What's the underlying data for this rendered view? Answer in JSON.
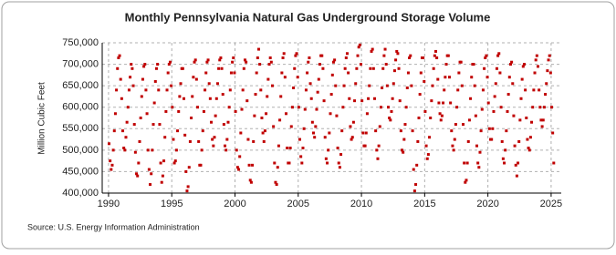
{
  "chart_data": {
    "type": "scatter",
    "title": "Monthly Pennsylvania Natural Gas Underground Storage Volume",
    "y_label": "Million Cubic Feet",
    "source": "Source: U.S. Energy Information Administration",
    "color": "#c00000",
    "grid": true,
    "xlim": [
      1989.5,
      2025.8
    ],
    "ylim": [
      400000,
      750000
    ],
    "xticks": [
      1990,
      1995,
      2000,
      2005,
      2010,
      2015,
      2020,
      2025
    ],
    "yticks": [
      {
        "value": 400000,
        "label": "400,000"
      },
      {
        "value": 450000,
        "label": "450,000"
      },
      {
        "value": 500000,
        "label": "500,000"
      },
      {
        "value": 550000,
        "label": "550,000"
      },
      {
        "value": 600000,
        "label": "600,000"
      },
      {
        "value": 650000,
        "label": "650,000"
      },
      {
        "value": 700000,
        "label": "700,000"
      },
      {
        "value": 750000,
        "label": "750,000"
      }
    ],
    "x": [
      1990.042,
      1990.125,
      1990.208,
      1990.292,
      1990.375,
      1990.458,
      1990.542,
      1990.625,
      1990.708,
      1990.792,
      1990.875,
      1990.958,
      1991.042,
      1991.125,
      1991.208,
      1991.292,
      1991.375,
      1991.458,
      1991.542,
      1991.625,
      1991.708,
      1991.792,
      1991.875,
      1991.958,
      1992.042,
      1992.125,
      1992.208,
      1992.292,
      1992.375,
      1992.458,
      1992.542,
      1992.625,
      1992.708,
      1992.792,
      1992.875,
      1992.958,
      1993.042,
      1993.125,
      1993.208,
      1993.292,
      1993.375,
      1993.458,
      1993.542,
      1993.625,
      1993.708,
      1993.792,
      1993.875,
      1993.958,
      1994.042,
      1994.125,
      1994.208,
      1994.292,
      1994.375,
      1994.458,
      1994.542,
      1994.625,
      1994.708,
      1994.792,
      1994.875,
      1994.958,
      1995.042,
      1995.125,
      1995.208,
      1995.292,
      1995.375,
      1995.458,
      1995.542,
      1995.625,
      1995.708,
      1995.792,
      1995.875,
      1995.958,
      1996.042,
      1996.125,
      1996.208,
      1996.292,
      1996.375,
      1996.458,
      1996.542,
      1996.625,
      1996.708,
      1996.792,
      1996.875,
      1996.958,
      1997.042,
      1997.125,
      1997.208,
      1997.292,
      1997.375,
      1997.458,
      1997.542,
      1997.625,
      1997.708,
      1997.792,
      1997.875,
      1997.958,
      1998.042,
      1998.125,
      1998.208,
      1998.292,
      1998.375,
      1998.458,
      1998.542,
      1998.625,
      1998.708,
      1998.792,
      1998.875,
      1998.958,
      1999.042,
      1999.125,
      1999.208,
      1999.292,
      1999.375,
      1999.458,
      1999.542,
      1999.625,
      1999.708,
      1999.792,
      1999.875,
      1999.958,
      2000.042,
      2000.125,
      2000.208,
      2000.292,
      2000.375,
      2000.458,
      2000.542,
      2000.625,
      2000.708,
      2000.792,
      2000.875,
      2000.958,
      2001.042,
      2001.125,
      2001.208,
      2001.292,
      2001.375,
      2001.458,
      2001.542,
      2001.625,
      2001.708,
      2001.792,
      2001.875,
      2001.958,
      2002.042,
      2002.125,
      2002.208,
      2002.292,
      2002.375,
      2002.458,
      2002.542,
      2002.625,
      2002.708,
      2002.792,
      2002.875,
      2002.958,
      2003.042,
      2003.125,
      2003.208,
      2003.292,
      2003.375,
      2003.458,
      2003.542,
      2003.625,
      2003.708,
      2003.792,
      2003.875,
      2003.958,
      2004.042,
      2004.125,
      2004.208,
      2004.292,
      2004.375,
      2004.458,
      2004.542,
      2004.625,
      2004.708,
      2004.792,
      2004.875,
      2004.958,
      2005.042,
      2005.125,
      2005.208,
      2005.292,
      2005.375,
      2005.458,
      2005.542,
      2005.625,
      2005.708,
      2005.792,
      2005.875,
      2005.958,
      2006.042,
      2006.125,
      2006.208,
      2006.292,
      2006.375,
      2006.458,
      2006.542,
      2006.625,
      2006.708,
      2006.792,
      2006.875,
      2006.958,
      2007.042,
      2007.125,
      2007.208,
      2007.292,
      2007.375,
      2007.458,
      2007.542,
      2007.625,
      2007.708,
      2007.792,
      2007.875,
      2007.958,
      2008.042,
      2008.125,
      2008.208,
      2008.292,
      2008.375,
      2008.458,
      2008.542,
      2008.625,
      2008.708,
      2008.792,
      2008.875,
      2008.958,
      2009.042,
      2009.125,
      2009.208,
      2009.292,
      2009.375,
      2009.458,
      2009.542,
      2009.625,
      2009.708,
      2009.792,
      2009.875,
      2009.958,
      2010.042,
      2010.125,
      2010.208,
      2010.292,
      2010.375,
      2010.458,
      2010.542,
      2010.625,
      2010.708,
      2010.792,
      2010.875,
      2010.958,
      2011.042,
      2011.125,
      2011.208,
      2011.292,
      2011.375,
      2011.458,
      2011.542,
      2011.625,
      2011.708,
      2011.792,
      2011.875,
      2011.958,
      2012.042,
      2012.125,
      2012.208,
      2012.292,
      2012.375,
      2012.458,
      2012.542,
      2012.625,
      2012.708,
      2012.792,
      2012.875,
      2012.958,
      2013.042,
      2013.125,
      2013.208,
      2013.292,
      2013.375,
      2013.458,
      2013.542,
      2013.625,
      2013.708,
      2013.792,
      2013.875,
      2013.958,
      2014.042,
      2014.125,
      2014.208,
      2014.292,
      2014.375,
      2014.458,
      2014.542,
      2014.625,
      2014.708,
      2014.792,
      2014.875,
      2014.958,
      2015.042,
      2015.125,
      2015.208,
      2015.292,
      2015.375,
      2015.458,
      2015.542,
      2015.625,
      2015.708,
      2015.792,
      2015.875,
      2015.958,
      2016.042,
      2016.125,
      2016.208,
      2016.292,
      2016.375,
      2016.458,
      2016.542,
      2016.625,
      2016.708,
      2016.792,
      2016.875,
      2016.958,
      2017.042,
      2017.125,
      2017.208,
      2017.292,
      2017.375,
      2017.458,
      2017.542,
      2017.625,
      2017.708,
      2017.792,
      2017.875,
      2017.958,
      2018.042,
      2018.125,
      2018.208,
      2018.292,
      2018.375,
      2018.458,
      2018.542,
      2018.625,
      2018.708,
      2018.792,
      2018.875,
      2018.958,
      2019.042,
      2019.125,
      2019.208,
      2019.292,
      2019.375,
      2019.458,
      2019.542,
      2019.625,
      2019.708,
      2019.792,
      2019.875,
      2019.958,
      2020.042,
      2020.125,
      2020.208,
      2020.292,
      2020.375,
      2020.458,
      2020.542,
      2020.625,
      2020.708,
      2020.792,
      2020.875,
      2020.958,
      2021.042,
      2021.125,
      2021.208,
      2021.292,
      2021.375,
      2021.458,
      2021.542,
      2021.625,
      2021.708,
      2021.792,
      2021.875,
      2021.958,
      2022.042,
      2022.125,
      2022.208,
      2022.292,
      2022.375,
      2022.458,
      2022.542,
      2022.625,
      2022.708,
      2022.792,
      2022.875,
      2022.958,
      2023.042,
      2023.125,
      2023.208,
      2023.292,
      2023.375,
      2023.458,
      2023.542,
      2023.625,
      2023.708,
      2023.792,
      2023.875,
      2023.958,
      2024.042,
      2024.125,
      2024.208,
      2024.292,
      2024.375,
      2024.458,
      2024.542,
      2024.625,
      2024.708,
      2024.792,
      2024.875,
      2024.958,
      2025.042,
      2025.125,
      2025.208
    ],
    "values": [
      515000,
      475000,
      455000,
      465000,
      500000,
      545000,
      585000,
      640000,
      690000,
      715000,
      720000,
      665000,
      620000,
      545000,
      505000,
      500000,
      530000,
      565000,
      600000,
      640000,
      670000,
      700000,
      690000,
      650000,
      560000,
      495000,
      445000,
      440000,
      470000,
      520000,
      575000,
      625000,
      665000,
      695000,
      700000,
      640000,
      585000,
      500000,
      455000,
      420000,
      445000,
      500000,
      560000,
      610000,
      660000,
      690000,
      700000,
      640000,
      560000,
      470000,
      425000,
      440000,
      475000,
      530000,
      590000,
      640000,
      680000,
      700000,
      705000,
      650000,
      600000,
      525000,
      470000,
      475000,
      500000,
      545000,
      590000,
      625000,
      655000,
      690000,
      690000,
      620000,
      535000,
      450000,
      405000,
      415000,
      460000,
      520000,
      575000,
      625000,
      670000,
      705000,
      710000,
      665000,
      600000,
      520000,
      465000,
      465000,
      500000,
      545000,
      590000,
      640000,
      680000,
      705000,
      710000,
      655000,
      620000,
      565000,
      525000,
      510000,
      530000,
      580000,
      620000,
      655000,
      690000,
      710000,
      715000,
      690000,
      630000,
      560000,
      510000,
      500000,
      525000,
      565000,
      600000,
      640000,
      680000,
      705000,
      715000,
      680000,
      590000,
      500000,
      460000,
      455000,
      485000,
      540000,
      595000,
      640000,
      690000,
      710000,
      705000,
      615000,
      525000,
      465000,
      430000,
      425000,
      465000,
      520000,
      580000,
      630000,
      680000,
      715000,
      735000,
      700000,
      640000,
      575000,
      540000,
      520000,
      545000,
      585000,
      625000,
      665000,
      700000,
      715000,
      705000,
      650000,
      555000,
      470000,
      425000,
      420000,
      460000,
      510000,
      570000,
      625000,
      680000,
      715000,
      725000,
      670000,
      585000,
      505000,
      470000,
      470000,
      505000,
      555000,
      600000,
      645000,
      690000,
      720000,
      725000,
      670000,
      600000,
      525000,
      485000,
      470000,
      505000,
      550000,
      595000,
      640000,
      680000,
      705000,
      715000,
      655000,
      620000,
      565000,
      540000,
      530000,
      555000,
      595000,
      635000,
      665000,
      700000,
      720000,
      720000,
      690000,
      615000,
      530000,
      480000,
      470000,
      500000,
      540000,
      585000,
      630000,
      675000,
      705000,
      710000,
      650000,
      580000,
      505000,
      470000,
      460000,
      490000,
      545000,
      600000,
      650000,
      690000,
      715000,
      725000,
      680000,
      620000,
      555000,
      525000,
      530000,
      565000,
      615000,
      655000,
      690000,
      720000,
      740000,
      745000,
      700000,
      615000,
      540000,
      510000,
      510000,
      540000,
      585000,
      620000,
      650000,
      690000,
      730000,
      735000,
      690000,
      620000,
      545000,
      500000,
      480000,
      510000,
      555000,
      600000,
      645000,
      690000,
      720000,
      735000,
      700000,
      650000,
      600000,
      575000,
      570000,
      590000,
      620000,
      655000,
      685000,
      710000,
      730000,
      725000,
      690000,
      615000,
      545000,
      500000,
      495000,
      525000,
      560000,
      600000,
      645000,
      680000,
      715000,
      720000,
      650000,
      545000,
      455000,
      405000,
      420000,
      465000,
      520000,
      575000,
      630000,
      680000,
      715000,
      715000,
      660000,
      590000,
      510000,
      480000,
      490000,
      530000,
      575000,
      615000,
      650000,
      690000,
      720000,
      730000,
      715000,
      665000,
      610000,
      585000,
      570000,
      580000,
      610000,
      640000,
      670000,
      700000,
      720000,
      720000,
      670000,
      610000,
      545000,
      510000,
      500000,
      525000,
      560000,
      600000,
      640000,
      680000,
      705000,
      705000,
      650000,
      560000,
      470000,
      425000,
      430000,
      470000,
      520000,
      570000,
      620000,
      670000,
      700000,
      700000,
      650000,
      580000,
      510000,
      470000,
      460000,
      495000,
      545000,
      595000,
      640000,
      690000,
      715000,
      720000,
      670000,
      610000,
      550000,
      525000,
      525000,
      550000,
      590000,
      625000,
      655000,
      690000,
      720000,
      725000,
      680000,
      600000,
      520000,
      480000,
      470000,
      500000,
      545000,
      590000,
      630000,
      670000,
      700000,
      705000,
      655000,
      580000,
      510000,
      465000,
      440000,
      470000,
      520000,
      570000,
      620000,
      665000,
      695000,
      700000,
      640000,
      575000,
      525000,
      505000,
      500000,
      530000,
      565000,
      600000,
      640000,
      680000,
      710000,
      720000,
      695000,
      640000,
      600000,
      570000,
      555000,
      570000,
      600000,
      630000,
      655000,
      685000,
      710000,
      720000,
      680000,
      600000,
      540000,
      470000
    ]
  }
}
